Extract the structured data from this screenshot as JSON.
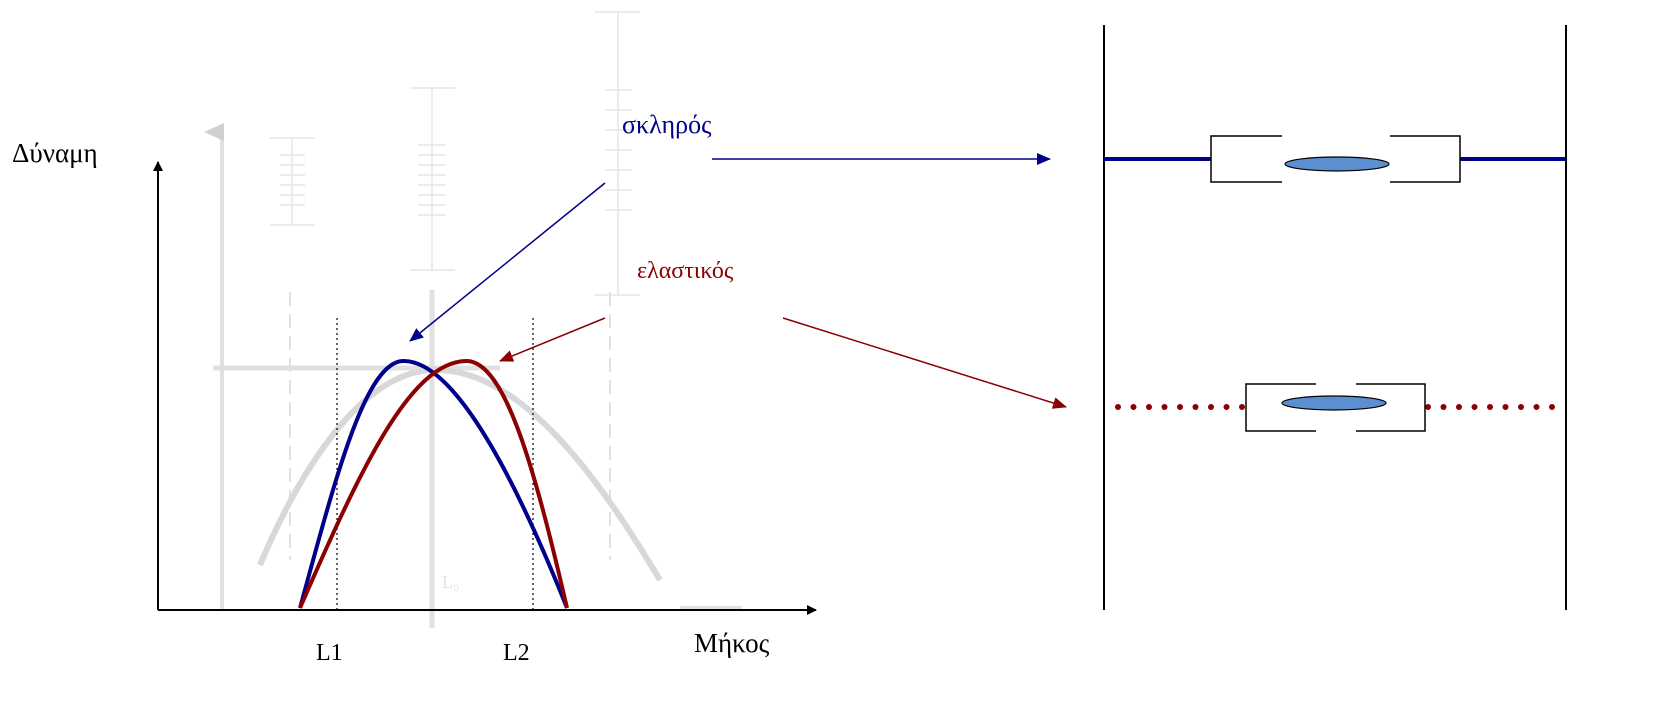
{
  "y_axis_label": "Δύναμη",
  "x_axis_label": "Μήκος",
  "curves": {
    "stiff": "σκληρός",
    "elastic": "ελαστικός"
  },
  "markers": {
    "l1": "L1",
    "l2": "L2",
    "l0": "L₀"
  }
}
